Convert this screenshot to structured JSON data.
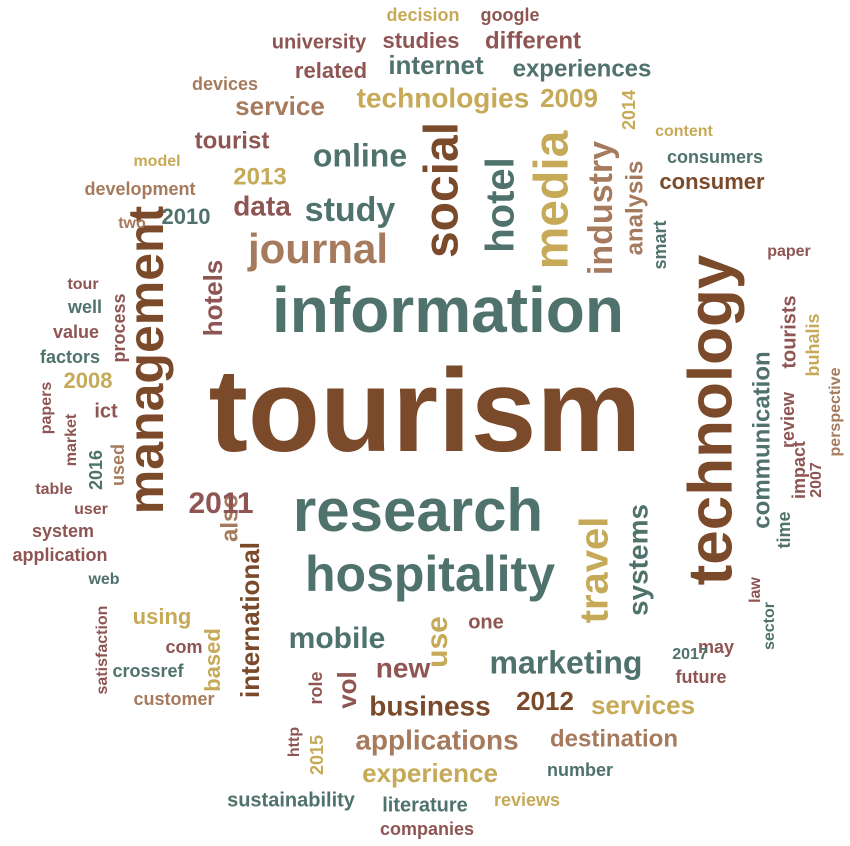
{
  "palette": {
    "brown": "#7a4a2a",
    "teal": "#4f726c",
    "gold": "#c6aa58",
    "rose": "#8e5553",
    "tan": "#a67a5d"
  },
  "words": [
    {
      "text": "tourism"
    },
    {
      "text": "information"
    },
    {
      "text": "technology"
    },
    {
      "text": "research"
    },
    {
      "text": "hospitality"
    },
    {
      "text": "management"
    },
    {
      "text": "journal"
    },
    {
      "text": "social"
    },
    {
      "text": "hotel"
    },
    {
      "text": "media"
    },
    {
      "text": "industry"
    },
    {
      "text": "analysis"
    },
    {
      "text": "online"
    },
    {
      "text": "study"
    },
    {
      "text": "data"
    },
    {
      "text": "hotels"
    },
    {
      "text": "tourist"
    },
    {
      "text": "2013"
    },
    {
      "text": "2010"
    },
    {
      "text": "two"
    },
    {
      "text": "development"
    },
    {
      "text": "model"
    },
    {
      "text": "service"
    },
    {
      "text": "technologies"
    },
    {
      "text": "2009"
    },
    {
      "text": "2014"
    },
    {
      "text": "devices"
    },
    {
      "text": "related"
    },
    {
      "text": "internet"
    },
    {
      "text": "experiences"
    },
    {
      "text": "university"
    },
    {
      "text": "studies"
    },
    {
      "text": "different"
    },
    {
      "text": "decision"
    },
    {
      "text": "google"
    },
    {
      "text": "content"
    },
    {
      "text": "consumers"
    },
    {
      "text": "consumer"
    },
    {
      "text": "smart"
    },
    {
      "text": "paper"
    },
    {
      "text": "tour"
    },
    {
      "text": "well"
    },
    {
      "text": "value"
    },
    {
      "text": "factors"
    },
    {
      "text": "process"
    },
    {
      "text": "2008"
    },
    {
      "text": "ict"
    },
    {
      "text": "papers"
    },
    {
      "text": "market"
    },
    {
      "text": "2016"
    },
    {
      "text": "used"
    },
    {
      "text": "table"
    },
    {
      "text": "user"
    },
    {
      "text": "system"
    },
    {
      "text": "application"
    },
    {
      "text": "web"
    },
    {
      "text": "satisfaction"
    },
    {
      "text": "crossref"
    },
    {
      "text": "customer"
    },
    {
      "text": "com"
    },
    {
      "text": "using"
    },
    {
      "text": "based"
    },
    {
      "text": "also"
    },
    {
      "text": "international"
    },
    {
      "text": "2011"
    },
    {
      "text": "mobile"
    },
    {
      "text": "new"
    },
    {
      "text": "use"
    },
    {
      "text": "one"
    },
    {
      "text": "travel"
    },
    {
      "text": "systems"
    },
    {
      "text": "marketing"
    },
    {
      "text": "business"
    },
    {
      "text": "2012"
    },
    {
      "text": "services"
    },
    {
      "text": "vol"
    },
    {
      "text": "role"
    },
    {
      "text": "http"
    },
    {
      "text": "2015"
    },
    {
      "text": "applications"
    },
    {
      "text": "destination"
    },
    {
      "text": "experience"
    },
    {
      "text": "number"
    },
    {
      "text": "sustainability"
    },
    {
      "text": "literature"
    },
    {
      "text": "reviews"
    },
    {
      "text": "companies"
    },
    {
      "text": "communication"
    },
    {
      "text": "review"
    },
    {
      "text": "tourists"
    },
    {
      "text": "impact"
    },
    {
      "text": "buhalis"
    },
    {
      "text": "2007"
    },
    {
      "text": "perspective"
    },
    {
      "text": "time"
    },
    {
      "text": "law"
    },
    {
      "text": "sector"
    },
    {
      "text": "may"
    },
    {
      "text": "2017"
    },
    {
      "text": "future"
    }
  ]
}
